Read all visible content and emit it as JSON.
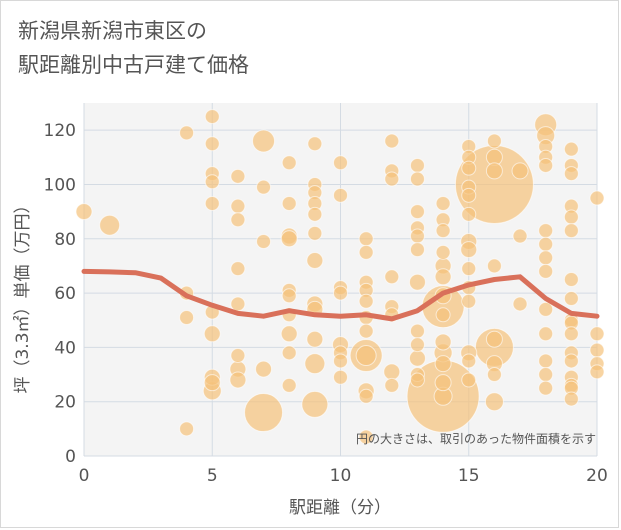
{
  "title_lines": [
    "新潟県新潟市東区の",
    "駅距離別中古戸建て価格"
  ],
  "chart_data": {
    "type": "scatter",
    "xlabel": "駅距離（分）",
    "ylabel": "坪（3.3㎡）単価（万円）",
    "xlim": [
      0,
      20
    ],
    "ylim": [
      0,
      130
    ],
    "x_ticks": [
      0,
      5,
      10,
      15,
      20
    ],
    "y_ticks": [
      0,
      20,
      40,
      60,
      80,
      100,
      120
    ],
    "grid": true,
    "note": "円の大きさは、取引のあった物件面積を示す",
    "bubble_color": "#f5c27a",
    "line_color": "#d9705a",
    "bubbles": [
      {
        "x": 0,
        "y": 90,
        "s": 8
      },
      {
        "x": 1,
        "y": 85,
        "s": 10
      },
      {
        "x": 4,
        "y": 119,
        "s": 7
      },
      {
        "x": 4,
        "y": 60,
        "s": 7
      },
      {
        "x": 4,
        "y": 51,
        "s": 7
      },
      {
        "x": 4,
        "y": 10,
        "s": 7
      },
      {
        "x": 5,
        "y": 125,
        "s": 7
      },
      {
        "x": 5,
        "y": 115,
        "s": 7
      },
      {
        "x": 5,
        "y": 104,
        "s": 7
      },
      {
        "x": 5,
        "y": 101,
        "s": 7
      },
      {
        "x": 5,
        "y": 93,
        "s": 7
      },
      {
        "x": 5,
        "y": 53,
        "s": 7
      },
      {
        "x": 5,
        "y": 45,
        "s": 8
      },
      {
        "x": 5,
        "y": 29,
        "s": 8
      },
      {
        "x": 5,
        "y": 27,
        "s": 8
      },
      {
        "x": 5,
        "y": 24,
        "s": 9
      },
      {
        "x": 6,
        "y": 103,
        "s": 7
      },
      {
        "x": 6,
        "y": 92,
        "s": 7
      },
      {
        "x": 6,
        "y": 87,
        "s": 7
      },
      {
        "x": 6,
        "y": 69,
        "s": 7
      },
      {
        "x": 6,
        "y": 56,
        "s": 7
      },
      {
        "x": 6,
        "y": 37,
        "s": 7
      },
      {
        "x": 6,
        "y": 32,
        "s": 8
      },
      {
        "x": 6,
        "y": 28,
        "s": 8
      },
      {
        "x": 7,
        "y": 116,
        "s": 11
      },
      {
        "x": 7,
        "y": 99,
        "s": 7
      },
      {
        "x": 7,
        "y": 79,
        "s": 7
      },
      {
        "x": 7,
        "y": 32,
        "s": 8
      },
      {
        "x": 7,
        "y": 16,
        "s": 19
      },
      {
        "x": 8,
        "y": 108,
        "s": 7
      },
      {
        "x": 8,
        "y": 93,
        "s": 7
      },
      {
        "x": 8,
        "y": 81,
        "s": 8
      },
      {
        "x": 8,
        "y": 80,
        "s": 8
      },
      {
        "x": 8,
        "y": 61,
        "s": 7
      },
      {
        "x": 8,
        "y": 59,
        "s": 7
      },
      {
        "x": 8,
        "y": 52,
        "s": 7
      },
      {
        "x": 8,
        "y": 45,
        "s": 8
      },
      {
        "x": 8,
        "y": 38,
        "s": 7
      },
      {
        "x": 8,
        "y": 26,
        "s": 7
      },
      {
        "x": 9,
        "y": 115,
        "s": 7
      },
      {
        "x": 9,
        "y": 100,
        "s": 7
      },
      {
        "x": 9,
        "y": 97,
        "s": 7
      },
      {
        "x": 9,
        "y": 93,
        "s": 7
      },
      {
        "x": 9,
        "y": 89,
        "s": 7
      },
      {
        "x": 9,
        "y": 82,
        "s": 7
      },
      {
        "x": 9,
        "y": 72,
        "s": 8
      },
      {
        "x": 9,
        "y": 56,
        "s": 8
      },
      {
        "x": 9,
        "y": 54,
        "s": 8
      },
      {
        "x": 9,
        "y": 43,
        "s": 8
      },
      {
        "x": 9,
        "y": 34,
        "s": 10
      },
      {
        "x": 9,
        "y": 19,
        "s": 13
      },
      {
        "x": 10,
        "y": 108,
        "s": 7
      },
      {
        "x": 10,
        "y": 96,
        "s": 7
      },
      {
        "x": 10,
        "y": 62,
        "s": 7
      },
      {
        "x": 10,
        "y": 60,
        "s": 7
      },
      {
        "x": 10,
        "y": 41,
        "s": 8
      },
      {
        "x": 10,
        "y": 38,
        "s": 7
      },
      {
        "x": 10,
        "y": 35,
        "s": 7
      },
      {
        "x": 10,
        "y": 29,
        "s": 7
      },
      {
        "x": 11,
        "y": 80,
        "s": 7
      },
      {
        "x": 11,
        "y": 75,
        "s": 7
      },
      {
        "x": 11,
        "y": 64,
        "s": 7
      },
      {
        "x": 11,
        "y": 61,
        "s": 7
      },
      {
        "x": 11,
        "y": 57,
        "s": 7
      },
      {
        "x": 11,
        "y": 51,
        "s": 7
      },
      {
        "x": 11,
        "y": 46,
        "s": 7
      },
      {
        "x": 11,
        "y": 37,
        "s": 16
      },
      {
        "x": 11,
        "y": 37,
        "s": 10
      },
      {
        "x": 11,
        "y": 24,
        "s": 8
      },
      {
        "x": 11,
        "y": 22,
        "s": 7
      },
      {
        "x": 11,
        "y": 7,
        "s": 7
      },
      {
        "x": 12,
        "y": 116,
        "s": 7
      },
      {
        "x": 12,
        "y": 105,
        "s": 7
      },
      {
        "x": 12,
        "y": 102,
        "s": 7
      },
      {
        "x": 12,
        "y": 66,
        "s": 7
      },
      {
        "x": 12,
        "y": 55,
        "s": 7
      },
      {
        "x": 12,
        "y": 52,
        "s": 7
      },
      {
        "x": 12,
        "y": 31,
        "s": 8
      },
      {
        "x": 12,
        "y": 26,
        "s": 7
      },
      {
        "x": 13,
        "y": 107,
        "s": 7
      },
      {
        "x": 13,
        "y": 102,
        "s": 7
      },
      {
        "x": 13,
        "y": 90,
        "s": 7
      },
      {
        "x": 13,
        "y": 84,
        "s": 7
      },
      {
        "x": 13,
        "y": 81,
        "s": 7
      },
      {
        "x": 13,
        "y": 76,
        "s": 7
      },
      {
        "x": 13,
        "y": 64,
        "s": 8
      },
      {
        "x": 13,
        "y": 46,
        "s": 7
      },
      {
        "x": 13,
        "y": 41,
        "s": 7
      },
      {
        "x": 13,
        "y": 36,
        "s": 8
      },
      {
        "x": 13,
        "y": 30,
        "s": 7
      },
      {
        "x": 13,
        "y": 28,
        "s": 7
      },
      {
        "x": 14,
        "y": 93,
        "s": 7
      },
      {
        "x": 14,
        "y": 87,
        "s": 7
      },
      {
        "x": 14,
        "y": 83,
        "s": 7
      },
      {
        "x": 14,
        "y": 75,
        "s": 7
      },
      {
        "x": 14,
        "y": 70,
        "s": 8
      },
      {
        "x": 14,
        "y": 66,
        "s": 8
      },
      {
        "x": 14,
        "y": 59,
        "s": 8
      },
      {
        "x": 14,
        "y": 55,
        "s": 21
      },
      {
        "x": 14,
        "y": 52,
        "s": 7
      },
      {
        "x": 14,
        "y": 42,
        "s": 8
      },
      {
        "x": 14,
        "y": 38,
        "s": 9
      },
      {
        "x": 14,
        "y": 34,
        "s": 8
      },
      {
        "x": 14,
        "y": 27,
        "s": 8
      },
      {
        "x": 14,
        "y": 22,
        "s": 36
      },
      {
        "x": 14,
        "y": 22,
        "s": 9
      },
      {
        "x": 15,
        "y": 114,
        "s": 7
      },
      {
        "x": 15,
        "y": 110,
        "s": 7
      },
      {
        "x": 15,
        "y": 106,
        "s": 7
      },
      {
        "x": 15,
        "y": 99,
        "s": 7
      },
      {
        "x": 15,
        "y": 96,
        "s": 7
      },
      {
        "x": 15,
        "y": 89,
        "s": 7
      },
      {
        "x": 15,
        "y": 79,
        "s": 8
      },
      {
        "x": 15,
        "y": 76,
        "s": 8
      },
      {
        "x": 15,
        "y": 69,
        "s": 7
      },
      {
        "x": 15,
        "y": 62,
        "s": 7
      },
      {
        "x": 15,
        "y": 57,
        "s": 7
      },
      {
        "x": 15,
        "y": 38,
        "s": 8
      },
      {
        "x": 15,
        "y": 35,
        "s": 7
      },
      {
        "x": 15,
        "y": 28,
        "s": 7
      },
      {
        "x": 16,
        "y": 116,
        "s": 7
      },
      {
        "x": 16,
        "y": 110,
        "s": 8
      },
      {
        "x": 16,
        "y": 105,
        "s": 8
      },
      {
        "x": 16,
        "y": 100,
        "s": 39
      },
      {
        "x": 16,
        "y": 70,
        "s": 7
      },
      {
        "x": 16,
        "y": 43,
        "s": 8
      },
      {
        "x": 16,
        "y": 40,
        "s": 19
      },
      {
        "x": 16,
        "y": 34,
        "s": 8
      },
      {
        "x": 16,
        "y": 30,
        "s": 7
      },
      {
        "x": 16,
        "y": 20,
        "s": 9
      },
      {
        "x": 17,
        "y": 105,
        "s": 8
      },
      {
        "x": 17,
        "y": 81,
        "s": 7
      },
      {
        "x": 17,
        "y": 56,
        "s": 7
      },
      {
        "x": 18,
        "y": 122,
        "s": 11
      },
      {
        "x": 18,
        "y": 118,
        "s": 9
      },
      {
        "x": 18,
        "y": 114,
        "s": 7
      },
      {
        "x": 18,
        "y": 110,
        "s": 7
      },
      {
        "x": 18,
        "y": 107,
        "s": 7
      },
      {
        "x": 18,
        "y": 83,
        "s": 7
      },
      {
        "x": 18,
        "y": 78,
        "s": 7
      },
      {
        "x": 18,
        "y": 73,
        "s": 7
      },
      {
        "x": 18,
        "y": 68,
        "s": 7
      },
      {
        "x": 18,
        "y": 54,
        "s": 7
      },
      {
        "x": 18,
        "y": 45,
        "s": 7
      },
      {
        "x": 18,
        "y": 35,
        "s": 7
      },
      {
        "x": 18,
        "y": 30,
        "s": 7
      },
      {
        "x": 18,
        "y": 25,
        "s": 7
      },
      {
        "x": 19,
        "y": 113,
        "s": 7
      },
      {
        "x": 19,
        "y": 107,
        "s": 7
      },
      {
        "x": 19,
        "y": 104,
        "s": 7
      },
      {
        "x": 19,
        "y": 92,
        "s": 7
      },
      {
        "x": 19,
        "y": 88,
        "s": 7
      },
      {
        "x": 19,
        "y": 83,
        "s": 7
      },
      {
        "x": 19,
        "y": 65,
        "s": 7
      },
      {
        "x": 19,
        "y": 58,
        "s": 7
      },
      {
        "x": 19,
        "y": 50,
        "s": 7
      },
      {
        "x": 19,
        "y": 49,
        "s": 7
      },
      {
        "x": 19,
        "y": 45,
        "s": 7
      },
      {
        "x": 19,
        "y": 38,
        "s": 7
      },
      {
        "x": 19,
        "y": 35,
        "s": 7
      },
      {
        "x": 19,
        "y": 29,
        "s": 7
      },
      {
        "x": 19,
        "y": 26,
        "s": 7
      },
      {
        "x": 19,
        "y": 25,
        "s": 7
      },
      {
        "x": 19,
        "y": 21,
        "s": 7
      },
      {
        "x": 20,
        "y": 95,
        "s": 7
      },
      {
        "x": 20,
        "y": 45,
        "s": 7
      },
      {
        "x": 20,
        "y": 39,
        "s": 7
      },
      {
        "x": 20,
        "y": 34,
        "s": 7
      },
      {
        "x": 20,
        "y": 31,
        "s": 7
      }
    ],
    "trend": [
      {
        "x": 0,
        "y": 68
      },
      {
        "x": 1,
        "y": 67.8
      },
      {
        "x": 2,
        "y": 67.5
      },
      {
        "x": 3,
        "y": 65.5
      },
      {
        "x": 4,
        "y": 59
      },
      {
        "x": 5,
        "y": 55.5
      },
      {
        "x": 6,
        "y": 52.5
      },
      {
        "x": 7,
        "y": 51.5
      },
      {
        "x": 8,
        "y": 53.5
      },
      {
        "x": 9,
        "y": 52
      },
      {
        "x": 10,
        "y": 51.5
      },
      {
        "x": 11,
        "y": 52
      },
      {
        "x": 12,
        "y": 50.5
      },
      {
        "x": 13,
        "y": 53.5
      },
      {
        "x": 14,
        "y": 60
      },
      {
        "x": 15,
        "y": 63
      },
      {
        "x": 16,
        "y": 65
      },
      {
        "x": 17,
        "y": 66
      },
      {
        "x": 18,
        "y": 58
      },
      {
        "x": 19,
        "y": 52.5
      },
      {
        "x": 20,
        "y": 51.5
      }
    ]
  }
}
